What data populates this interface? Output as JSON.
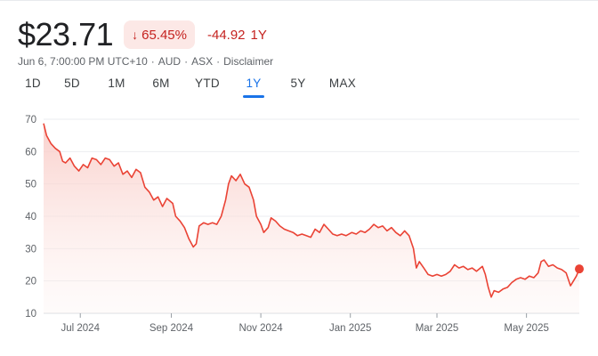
{
  "quote": {
    "price": "$23.71",
    "pct_arrow": "↓",
    "pct_change": "65.45%",
    "abs_change": "-44.92",
    "period": "1Y"
  },
  "meta": {
    "timestamp": "Jun 6, 7:00:00 PM UTC+10",
    "sep1": "·",
    "currency": "AUD",
    "sep2": "·",
    "exchange": "ASX",
    "sep3": "·",
    "disclaimer": "Disclaimer"
  },
  "tabs": [
    {
      "label": "1D",
      "active": false
    },
    {
      "label": "5D",
      "active": false
    },
    {
      "label": "1M",
      "active": false
    },
    {
      "label": "6M",
      "active": false
    },
    {
      "label": "YTD",
      "active": false
    },
    {
      "label": "1Y",
      "active": true
    },
    {
      "label": "5Y",
      "active": false
    },
    {
      "label": "MAX",
      "active": false
    }
  ],
  "colors": {
    "line": "#ea4335",
    "fill": "#fce8e6",
    "accent": "#1a73e8",
    "negative": "#c5221f"
  },
  "chart_data": {
    "type": "area",
    "title": "",
    "xlabel": "",
    "ylabel": "",
    "ylim": [
      10,
      70
    ],
    "yticks": [
      10,
      20,
      30,
      40,
      50,
      60,
      70
    ],
    "xticks": [
      {
        "label": "Jul 2024",
        "date": "2024-07-01"
      },
      {
        "label": "Sep 2024",
        "date": "2024-09-01"
      },
      {
        "label": "Nov 2024",
        "date": "2024-11-01"
      },
      {
        "label": "Jan 2025",
        "date": "2025-01-01"
      },
      {
        "label": "Mar 2025",
        "date": "2025-03-01"
      },
      {
        "label": "May 2025",
        "date": "2025-05-01"
      }
    ],
    "xlim": [
      "2024-06-06",
      "2025-06-06"
    ],
    "grid": true,
    "series": [
      {
        "points": [
          [
            "2024-06-06",
            68.7
          ],
          [
            "2024-06-08",
            65.0
          ],
          [
            "2024-06-11",
            62.5
          ],
          [
            "2024-06-14",
            61.0
          ],
          [
            "2024-06-17",
            60.0
          ],
          [
            "2024-06-19",
            57.0
          ],
          [
            "2024-06-21",
            56.5
          ],
          [
            "2024-06-24",
            58.0
          ],
          [
            "2024-06-27",
            55.5
          ],
          [
            "2024-06-30",
            54.0
          ],
          [
            "2024-07-03",
            56.0
          ],
          [
            "2024-07-06",
            55.0
          ],
          [
            "2024-07-09",
            58.0
          ],
          [
            "2024-07-12",
            57.5
          ],
          [
            "2024-07-15",
            56.0
          ],
          [
            "2024-07-18",
            58.0
          ],
          [
            "2024-07-21",
            57.5
          ],
          [
            "2024-07-24",
            55.5
          ],
          [
            "2024-07-27",
            56.5
          ],
          [
            "2024-07-30",
            53.0
          ],
          [
            "2024-08-02",
            54.0
          ],
          [
            "2024-08-05",
            52.0
          ],
          [
            "2024-08-08",
            54.5
          ],
          [
            "2024-08-11",
            53.5
          ],
          [
            "2024-08-14",
            49.0
          ],
          [
            "2024-08-17",
            47.5
          ],
          [
            "2024-08-20",
            45.0
          ],
          [
            "2024-08-23",
            46.0
          ],
          [
            "2024-08-26",
            43.0
          ],
          [
            "2024-08-29",
            45.5
          ],
          [
            "2024-09-02",
            44.0
          ],
          [
            "2024-09-04",
            40.0
          ],
          [
            "2024-09-07",
            38.5
          ],
          [
            "2024-09-10",
            36.5
          ],
          [
            "2024-09-13",
            33.0
          ],
          [
            "2024-09-16",
            30.5
          ],
          [
            "2024-09-18",
            31.5
          ],
          [
            "2024-09-20",
            37.0
          ],
          [
            "2024-09-23",
            38.0
          ],
          [
            "2024-09-26",
            37.5
          ],
          [
            "2024-09-29",
            38.0
          ],
          [
            "2024-10-02",
            37.5
          ],
          [
            "2024-10-05",
            40.0
          ],
          [
            "2024-10-08",
            45.0
          ],
          [
            "2024-10-10",
            50.0
          ],
          [
            "2024-10-12",
            52.5
          ],
          [
            "2024-10-15",
            51.0
          ],
          [
            "2024-10-18",
            53.0
          ],
          [
            "2024-10-21",
            50.0
          ],
          [
            "2024-10-24",
            49.0
          ],
          [
            "2024-10-27",
            45.0
          ],
          [
            "2024-10-29",
            40.0
          ],
          [
            "2024-11-01",
            37.5
          ],
          [
            "2024-11-03",
            35.0
          ],
          [
            "2024-11-06",
            36.5
          ],
          [
            "2024-11-08",
            39.5
          ],
          [
            "2024-11-11",
            38.5
          ],
          [
            "2024-11-14",
            37.0
          ],
          [
            "2024-11-17",
            36.0
          ],
          [
            "2024-11-20",
            35.5
          ],
          [
            "2024-11-23",
            35.0
          ],
          [
            "2024-11-26",
            34.0
          ],
          [
            "2024-11-29",
            34.5
          ],
          [
            "2024-12-02",
            34.0
          ],
          [
            "2024-12-05",
            33.5
          ],
          [
            "2024-12-08",
            36.0
          ],
          [
            "2024-12-11",
            35.0
          ],
          [
            "2024-12-14",
            37.5
          ],
          [
            "2024-12-17",
            36.0
          ],
          [
            "2024-12-20",
            34.5
          ],
          [
            "2024-12-23",
            34.0
          ],
          [
            "2024-12-26",
            34.5
          ],
          [
            "2024-12-29",
            34.0
          ],
          [
            "2025-01-02",
            35.0
          ],
          [
            "2025-01-05",
            34.5
          ],
          [
            "2025-01-08",
            35.5
          ],
          [
            "2025-01-11",
            35.0
          ],
          [
            "2025-01-14",
            36.0
          ],
          [
            "2025-01-17",
            37.5
          ],
          [
            "2025-01-20",
            36.5
          ],
          [
            "2025-01-23",
            37.0
          ],
          [
            "2025-01-26",
            35.5
          ],
          [
            "2025-01-29",
            36.5
          ],
          [
            "2025-02-01",
            35.0
          ],
          [
            "2025-02-04",
            34.0
          ],
          [
            "2025-02-07",
            35.5
          ],
          [
            "2025-02-10",
            34.0
          ],
          [
            "2025-02-13",
            30.0
          ],
          [
            "2025-02-15",
            24.0
          ],
          [
            "2025-02-17",
            26.0
          ],
          [
            "2025-02-20",
            24.0
          ],
          [
            "2025-02-23",
            22.0
          ],
          [
            "2025-02-26",
            21.5
          ],
          [
            "2025-03-01",
            22.0
          ],
          [
            "2025-03-04",
            21.5
          ],
          [
            "2025-03-07",
            22.0
          ],
          [
            "2025-03-10",
            23.0
          ],
          [
            "2025-03-13",
            25.0
          ],
          [
            "2025-03-16",
            24.0
          ],
          [
            "2025-03-19",
            24.5
          ],
          [
            "2025-03-22",
            23.5
          ],
          [
            "2025-03-25",
            24.0
          ],
          [
            "2025-03-28",
            23.0
          ],
          [
            "2025-04-01",
            24.5
          ],
          [
            "2025-04-03",
            22.0
          ],
          [
            "2025-04-05",
            18.0
          ],
          [
            "2025-04-07",
            15.0
          ],
          [
            "2025-04-09",
            17.0
          ],
          [
            "2025-04-12",
            16.5
          ],
          [
            "2025-04-15",
            17.5
          ],
          [
            "2025-04-18",
            18.0
          ],
          [
            "2025-04-21",
            19.5
          ],
          [
            "2025-04-24",
            20.5
          ],
          [
            "2025-04-27",
            21.0
          ],
          [
            "2025-04-30",
            20.5
          ],
          [
            "2025-05-03",
            21.5
          ],
          [
            "2025-05-06",
            21.0
          ],
          [
            "2025-05-09",
            22.5
          ],
          [
            "2025-05-11",
            26.0
          ],
          [
            "2025-05-13",
            26.5
          ],
          [
            "2025-05-16",
            24.5
          ],
          [
            "2025-05-19",
            25.0
          ],
          [
            "2025-05-22",
            24.0
          ],
          [
            "2025-05-25",
            23.5
          ],
          [
            "2025-05-28",
            22.5
          ],
          [
            "2025-05-31",
            18.5
          ],
          [
            "2025-06-02",
            20.0
          ],
          [
            "2025-06-04",
            21.5
          ],
          [
            "2025-06-06",
            23.71
          ]
        ]
      }
    ]
  }
}
